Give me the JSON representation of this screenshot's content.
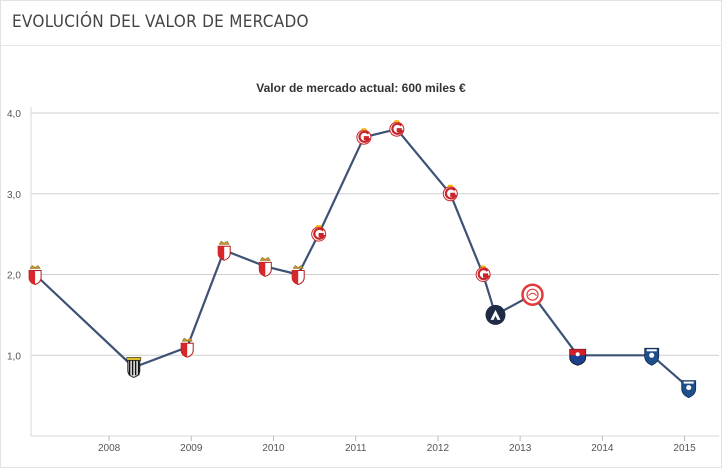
{
  "header": {
    "title": "EVOLUCIÓN DEL VALOR DE MERCADO"
  },
  "chart_data": {
    "type": "line",
    "title": "Valor de mercado actual: 600 miles €",
    "xlabel": "",
    "ylabel": "",
    "x_tick_labels": [
      "2008",
      "2009",
      "2010",
      "2011",
      "2012",
      "2013",
      "2014",
      "2015"
    ],
    "y_tick_labels": [
      "1,0",
      "2,0",
      "3,0",
      "4,0"
    ],
    "ylim": [
      0,
      4
    ],
    "grid": true,
    "line_color": "#3d5274",
    "points": [
      {
        "x": 2007.1,
        "y": 2.0,
        "club_icon": "monaco-crest-icon"
      },
      {
        "x": 2008.3,
        "y": 0.85,
        "club_icon": "black-white-stripes-crest-icon"
      },
      {
        "x": 2008.95,
        "y": 1.1,
        "club_icon": "monaco-crest-icon"
      },
      {
        "x": 2009.4,
        "y": 2.3,
        "club_icon": "monaco-crest-icon"
      },
      {
        "x": 2009.9,
        "y": 2.1,
        "club_icon": "monaco-crest-icon"
      },
      {
        "x": 2010.3,
        "y": 2.0,
        "club_icon": "monaco-crest-icon"
      },
      {
        "x": 2010.55,
        "y": 2.5,
        "club_icon": "galatasaray-crest-icon"
      },
      {
        "x": 2011.1,
        "y": 3.7,
        "club_icon": "galatasaray-crest-icon"
      },
      {
        "x": 2011.5,
        "y": 3.8,
        "club_icon": "galatasaray-crest-icon"
      },
      {
        "x": 2012.15,
        "y": 3.0,
        "club_icon": "galatasaray-crest-icon"
      },
      {
        "x": 2012.55,
        "y": 2.0,
        "club_icon": "galatasaray-crest-icon"
      },
      {
        "x": 2012.7,
        "y": 1.5,
        "club_icon": "dark-blue-round-crest-icon"
      },
      {
        "x": 2013.15,
        "y": 1.75,
        "club_icon": "olympiacos-crest-icon"
      },
      {
        "x": 2013.7,
        "y": 1.0,
        "club_icon": "medellin-crest-icon"
      },
      {
        "x": 2014.6,
        "y": 1.0,
        "club_icon": "bastia-crest-icon"
      },
      {
        "x": 2015.05,
        "y": 0.6,
        "club_icon": "bastia-crest-icon"
      }
    ],
    "colors": {
      "monaco_red": "#d8262b",
      "galatasaray_red": "#c8252b",
      "galatasaray_yellow": "#f4b400",
      "olympiacos_red": "#e03a3a",
      "medellin_red": "#d41f2a",
      "medellin_blue": "#1d3f8f",
      "bastia_blue": "#1f4f8a",
      "dark_navy": "#1f2a44"
    }
  }
}
